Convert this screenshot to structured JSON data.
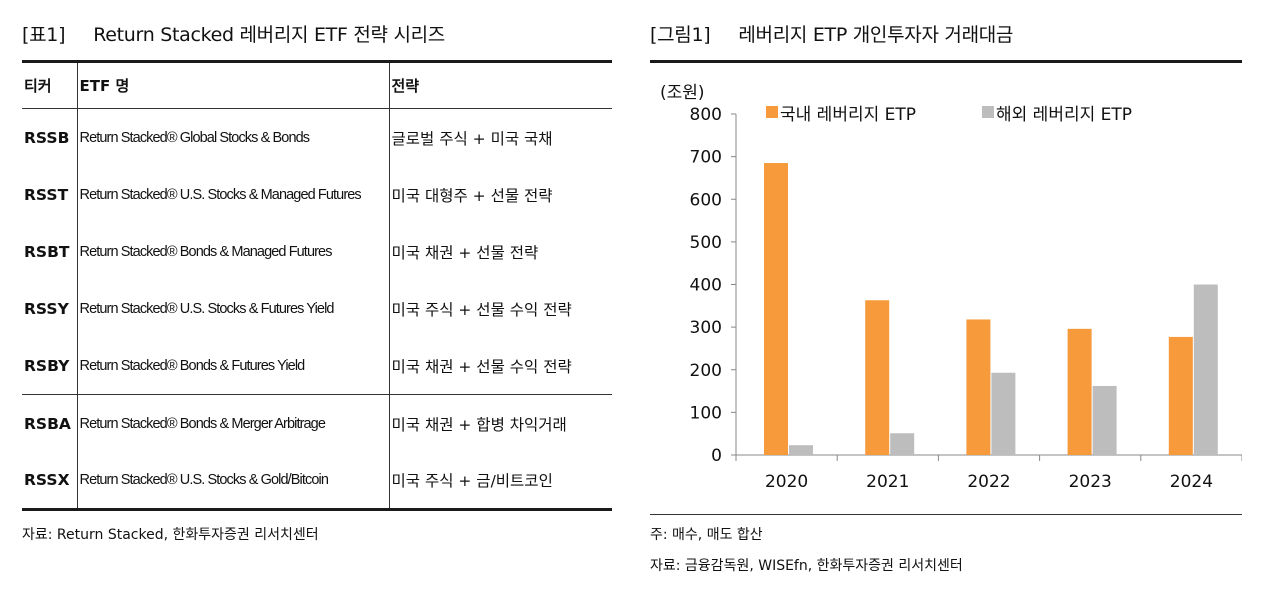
{
  "table": {
    "tag": "[표1]",
    "title": "Return Stacked 레버리지 ETF 전략 시리즈",
    "headers": [
      "티커",
      "ETF 명",
      "전략"
    ],
    "rows": [
      {
        "ticker": "RSSB",
        "name": "Return Stacked® Global Stocks & Bonds",
        "strategy": "글로벌 주식 + 미국 국채"
      },
      {
        "ticker": "RSST",
        "name": "Return Stacked® U.S. Stocks & Managed Futures",
        "strategy": "미국 대형주 + 선물 전략"
      },
      {
        "ticker": "RSBT",
        "name": "Return Stacked® Bonds & Managed Futures",
        "strategy": "미국 채권 + 선물 전략"
      },
      {
        "ticker": "RSSY",
        "name": "Return Stacked® U.S. Stocks & Futures Yield",
        "strategy": "미국 주식 + 선물 수익 전략"
      },
      {
        "ticker": "RSBY",
        "name": "Return Stacked® Bonds & Futures Yield",
        "strategy": "미국 채권 + 선물 수익 전략"
      },
      {
        "ticker": "RSBA",
        "name": "Return Stacked® Bonds & Merger Arbitrage",
        "strategy": "미국 채권 + 합병 차익거래"
      },
      {
        "ticker": "RSSX",
        "name": "Return Stacked® U.S. Stocks & Gold/Bitcoin",
        "strategy": "미국 주식 + 금/비트코인"
      }
    ],
    "source": "자료: Return Stacked, 한화투자증권 리서치센터"
  },
  "figure": {
    "tag": "[그림1]",
    "title": "레버리지 ETP 개인투자자 거래대금",
    "note": "주: 매수, 매도 합산",
    "source": "자료: 금융감독원, WISEfn, 한화투자증권 리서치센터"
  },
  "chart_data": {
    "type": "bar",
    "title": "레버리지 ETP 개인투자자 거래대금",
    "ylabel": "(조원)",
    "xlabel": "",
    "categories": [
      "2020",
      "2021",
      "2022",
      "2023",
      "2024"
    ],
    "series": [
      {
        "name": "국내 레버리지 ETP",
        "color": "#f79a3c",
        "values": [
          685,
          363,
          318,
          296,
          277
        ]
      },
      {
        "name": "해외 레버리지 ETP",
        "color": "#bdbdbd",
        "values": [
          23,
          51,
          193,
          162,
          400
        ]
      }
    ],
    "ylim": [
      0,
      800
    ],
    "yticks": [
      0,
      100,
      200,
      300,
      400,
      500,
      600,
      700,
      800
    ],
    "grid": false,
    "legend": "top"
  }
}
